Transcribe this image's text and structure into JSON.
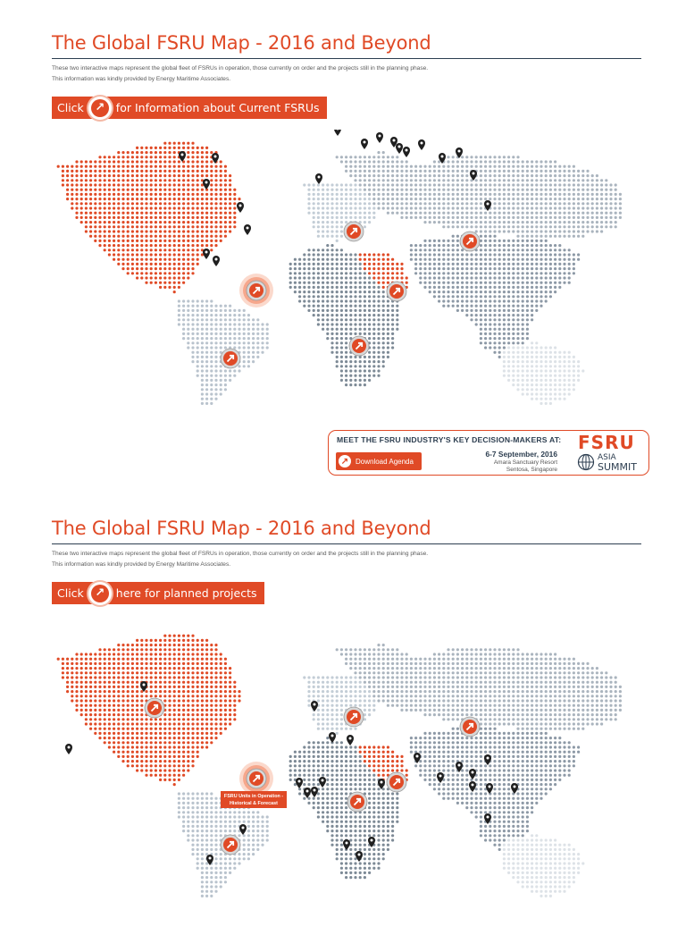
{
  "sections": [
    {
      "title": "The Global FSRU Map - 2016 and Beyond",
      "description_lines": [
        "These two interactive maps represent the global fleet of FSRUs in operation, those currently on order and the projects still in the planning phase.",
        "This information was kindly provided by Energy Maritime Associates."
      ],
      "button": {
        "label_left": "Click",
        "label_right": "for Information about Current FSRUs",
        "icon": "arrow-up-right-icon"
      },
      "map": {
        "highlight_color": "#e04a26",
        "region_colors": {
          "americas_north": "#e04a26",
          "americas_south": "#b9c3cd",
          "europe": "#c3cdd6",
          "africa_mideast": "#7d8a96",
          "asia": "#8d99a6",
          "russia": "#aab4be",
          "oceania": "#dde2e7",
          "gulf": "#e04a26"
        },
        "hotspot_icon": "arrow-up-right-icon",
        "marker_icon": "map-pin-icon"
      },
      "banner": {
        "heading": "MEET THE FSRU INDUSTRY'S KEY DECISION-MAKERS AT:",
        "button": "Download Agenda",
        "date": "6-7 September, 2016",
        "venue": "Amara Sanctuary Resort",
        "place": "Sentosa, Singapore",
        "logo_fsru": "FSRU",
        "logo_asia": "ASIA",
        "logo_summit": "SUMMIT"
      }
    },
    {
      "title": "The Global FSRU Map - 2016 and Beyond",
      "description_lines": [
        "These two interactive maps represent the global fleet of FSRUs in operation, those currently on order and the projects still in the planning phase.",
        "This information was kindly provided by Energy Maritime Associates."
      ],
      "button": {
        "label_left": "Click",
        "label_right": "here for planned projects",
        "icon": "arrow-up-right-icon"
      },
      "map": {
        "tooltip_line1": "FSRU Units in Operation -",
        "tooltip_line2": "Historical & Forecast",
        "hotspot_icon": "arrow-up-right-icon",
        "marker_icon": "map-pin-icon"
      }
    }
  ]
}
